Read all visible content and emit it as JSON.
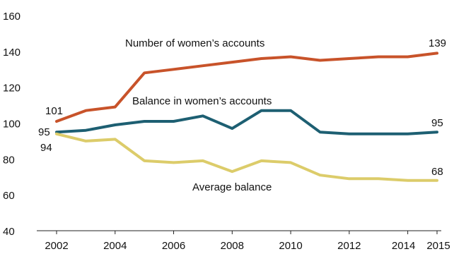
{
  "chart_data": {
    "type": "line",
    "x": [
      2002,
      2003,
      2004,
      2005,
      2006,
      2007,
      2008,
      2009,
      2010,
      2011,
      2012,
      2013,
      2014,
      2015
    ],
    "xticks": [
      "2002",
      "2004",
      "2006",
      "2008",
      "2010",
      "2012",
      "2014",
      "2015"
    ],
    "xtick_values": [
      2002,
      2004,
      2006,
      2008,
      2010,
      2012,
      2014,
      2015
    ],
    "ylim": [
      40,
      160
    ],
    "yticks": [
      "40",
      "60",
      "80",
      "100",
      "120",
      "140",
      "160"
    ],
    "ytick_values": [
      40,
      60,
      80,
      100,
      120,
      140,
      160
    ],
    "grid": false,
    "series": [
      {
        "name": "Number of women’s accounts",
        "color": "#c8532a",
        "values": [
          101,
          107,
          109,
          128,
          130,
          132,
          134,
          136,
          137,
          135,
          136,
          137,
          137,
          139
        ],
        "start_label": "101",
        "end_label": "139"
      },
      {
        "name": "Balance in women’s accounts",
        "color": "#1d5f72",
        "values": [
          95,
          96,
          99,
          101,
          101,
          104,
          97,
          107,
          107,
          95,
          94,
          94,
          94,
          95
        ],
        "start_label": "95",
        "end_label": "95"
      },
      {
        "name": "Average balance",
        "color": "#dccc6a",
        "values": [
          94,
          90,
          91,
          79,
          78,
          79,
          73,
          79,
          78,
          71,
          69,
          69,
          68,
          68
        ],
        "start_label": "94",
        "end_label": "68"
      }
    ]
  }
}
